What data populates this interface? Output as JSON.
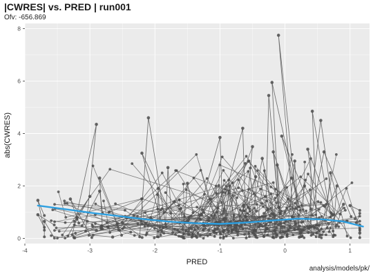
{
  "chart_data": {
    "type": "scatter",
    "title": "|CWRES| vs. PRED | run001",
    "subtitle": "Ofv: -656.869",
    "caption": "analysis/models/pk/",
    "xlabel": "PRED",
    "ylabel": "abs(CWRES)",
    "xlim": [
      -4,
      1.3
    ],
    "ylim": [
      -0.2,
      8.2
    ],
    "xticks": [
      -4,
      -3,
      -2,
      -1,
      0,
      1
    ],
    "yticks": [
      0,
      2,
      4,
      6,
      8
    ],
    "grid": true,
    "legend": "none",
    "colors": {
      "points": "#4d4d4d",
      "lines": "#555555",
      "smooth": "#2d9fe0",
      "panel": "#ebebeb",
      "grid": "#ffffff"
    },
    "smooth": {
      "x": [
        -3.8,
        -3.4,
        -3.0,
        -2.6,
        -2.2,
        -1.8,
        -1.4,
        -1.0,
        -0.6,
        -0.2,
        0.2,
        0.6,
        0.9,
        1.2
      ],
      "y": [
        1.25,
        1.12,
        0.98,
        0.86,
        0.74,
        0.64,
        0.58,
        0.55,
        0.6,
        0.68,
        0.75,
        0.72,
        0.64,
        0.45
      ]
    },
    "notable_points": [
      {
        "x": -3.8,
        "y": 1.45
      },
      {
        "x": -3.8,
        "y": 0.9
      },
      {
        "x": -3.7,
        "y": 0.65
      },
      {
        "x": -3.3,
        "y": 1.5
      },
      {
        "x": -3.2,
        "y": 0.8
      },
      {
        "x": -3.0,
        "y": 1.6
      },
      {
        "x": -2.9,
        "y": 4.35
      },
      {
        "x": -2.85,
        "y": 2.3
      },
      {
        "x": -2.85,
        "y": 1.8
      },
      {
        "x": -2.9,
        "y": 0.3
      },
      {
        "x": -2.65,
        "y": 0.05
      },
      {
        "x": -2.5,
        "y": 0.6
      },
      {
        "x": -2.2,
        "y": 3.25
      },
      {
        "x": -2.1,
        "y": 4.6
      },
      {
        "x": -1.95,
        "y": 1.9
      },
      {
        "x": -1.8,
        "y": 2.7
      },
      {
        "x": -1.7,
        "y": 1.4
      },
      {
        "x": -1.5,
        "y": 2.1
      },
      {
        "x": -1.25,
        "y": 0.5
      },
      {
        "x": -1.05,
        "y": 1.0
      },
      {
        "x": -1.0,
        "y": 3.85
      },
      {
        "x": -0.85,
        "y": 2.0
      },
      {
        "x": -0.75,
        "y": 0.4
      },
      {
        "x": -0.65,
        "y": 4.2
      },
      {
        "x": -0.5,
        "y": 3.5
      },
      {
        "x": -0.45,
        "y": 2.35
      },
      {
        "x": -0.35,
        "y": 3.05
      },
      {
        "x": -0.3,
        "y": 1.6
      },
      {
        "x": -0.25,
        "y": 5.45
      },
      {
        "x": -0.2,
        "y": 5.95
      },
      {
        "x": -0.18,
        "y": 3.3
      },
      {
        "x": -0.12,
        "y": 2.8
      },
      {
        "x": -0.1,
        "y": 7.75
      },
      {
        "x": -0.05,
        "y": 3.9
      },
      {
        "x": 0.05,
        "y": 1.5
      },
      {
        "x": 0.1,
        "y": 2.3
      },
      {
        "x": 0.15,
        "y": 2.95
      },
      {
        "x": 0.3,
        "y": 2.0
      },
      {
        "x": 0.35,
        "y": 3.4
      },
      {
        "x": 0.42,
        "y": 4.85
      },
      {
        "x": 0.55,
        "y": 4.5
      },
      {
        "x": 0.6,
        "y": 3.3
      },
      {
        "x": 0.7,
        "y": 2.5
      },
      {
        "x": 0.8,
        "y": 2.0
      },
      {
        "x": 0.9,
        "y": 1.3
      },
      {
        "x": 1.0,
        "y": 1.25
      },
      {
        "x": 1.1,
        "y": 0.6
      },
      {
        "x": 1.15,
        "y": 0.2
      }
    ]
  }
}
